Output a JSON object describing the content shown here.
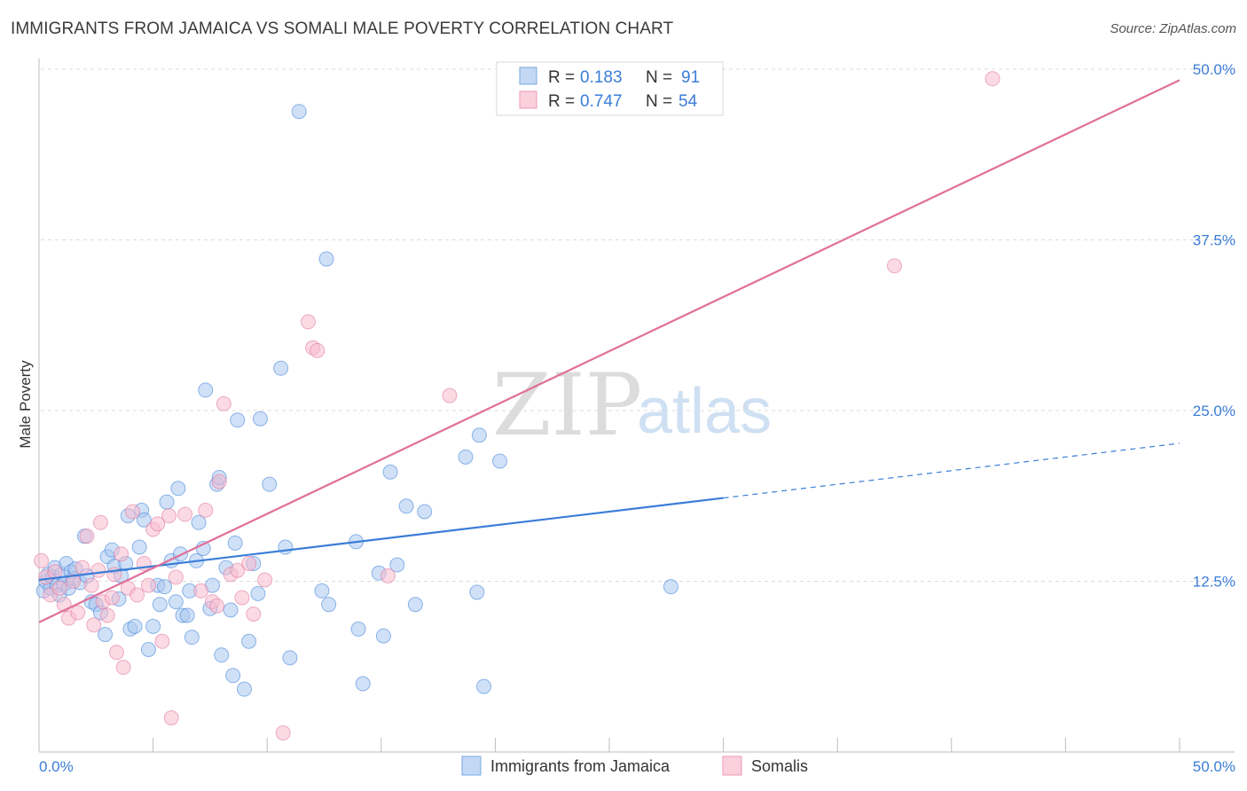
{
  "header": {
    "title": "IMMIGRANTS FROM JAMAICA VS SOMALI MALE POVERTY CORRELATION CHART",
    "source": "Source: ZipAtlas.com"
  },
  "stats_box": {
    "rows": [
      {
        "r_label": "R =",
        "r_value": "0.183",
        "n_label": "N =",
        "n_value": "91",
        "color": "#9dc3ef"
      },
      {
        "r_label": "R =",
        "r_value": "0.747",
        "n_label": "N =",
        "n_value": "54",
        "color": "#f5b5c9"
      }
    ]
  },
  "watermark": {
    "zip": "ZIP",
    "atlas": "atlas"
  },
  "chart_data": {
    "type": "scatter",
    "title": "IMMIGRANTS FROM JAMAICA VS SOMALI MALE POVERTY CORRELATION CHART",
    "xlabel": "",
    "ylabel": "Male Poverty",
    "xlim": [
      0,
      50
    ],
    "ylim": [
      0,
      50
    ],
    "x_tick_labels": [
      "0.0%",
      "50.0%"
    ],
    "y_ticks": [
      12.5,
      25.0,
      37.5,
      50.0
    ],
    "y_tick_labels": [
      "12.5%",
      "25.0%",
      "37.5%",
      "50.0%"
    ],
    "grid": true,
    "legend_position": "bottom-center",
    "series": [
      {
        "name": "Immigrants from Jamaica",
        "color": "#3b7dd8",
        "fill": "#a9c9f0",
        "trend": {
          "x": [
            0,
            30
          ],
          "y": [
            12.6,
            18.6
          ],
          "dashed_to": [
            50,
            22.6
          ]
        },
        "points": [
          [
            0.2,
            11.8
          ],
          [
            0.3,
            12.5
          ],
          [
            0.4,
            13.0
          ],
          [
            0.5,
            12.0
          ],
          [
            0.6,
            12.8
          ],
          [
            0.7,
            13.5
          ],
          [
            0.8,
            12.2
          ],
          [
            0.9,
            11.5
          ],
          [
            1.0,
            13.0
          ],
          [
            1.1,
            12.3
          ],
          [
            1.2,
            13.8
          ],
          [
            1.3,
            12.0
          ],
          [
            1.4,
            13.2
          ],
          [
            1.5,
            12.7
          ],
          [
            1.6,
            13.4
          ],
          [
            1.8,
            12.4
          ],
          [
            2.0,
            15.8
          ],
          [
            2.1,
            12.9
          ],
          [
            2.3,
            11.0
          ],
          [
            2.5,
            10.8
          ],
          [
            2.7,
            10.2
          ],
          [
            2.9,
            8.6
          ],
          [
            3.0,
            14.3
          ],
          [
            3.2,
            14.8
          ],
          [
            3.3,
            13.6
          ],
          [
            3.5,
            11.2
          ],
          [
            3.6,
            12.9
          ],
          [
            3.8,
            13.8
          ],
          [
            3.9,
            17.3
          ],
          [
            4.0,
            9.0
          ],
          [
            4.2,
            9.2
          ],
          [
            4.4,
            15.0
          ],
          [
            4.5,
            17.7
          ],
          [
            4.6,
            17.0
          ],
          [
            4.8,
            7.5
          ],
          [
            5.0,
            9.2
          ],
          [
            5.2,
            12.2
          ],
          [
            5.3,
            10.8
          ],
          [
            5.5,
            12.1
          ],
          [
            5.6,
            18.3
          ],
          [
            5.8,
            14.0
          ],
          [
            6.0,
            11.0
          ],
          [
            6.1,
            19.3
          ],
          [
            6.2,
            14.5
          ],
          [
            6.3,
            10.0
          ],
          [
            6.5,
            10.0
          ],
          [
            6.6,
            11.8
          ],
          [
            6.7,
            8.4
          ],
          [
            6.9,
            14.0
          ],
          [
            7.0,
            16.8
          ],
          [
            7.2,
            14.9
          ],
          [
            7.3,
            26.5
          ],
          [
            7.5,
            10.5
          ],
          [
            7.6,
            12.2
          ],
          [
            7.8,
            19.6
          ],
          [
            7.9,
            20.1
          ],
          [
            8.0,
            7.1
          ],
          [
            8.2,
            13.5
          ],
          [
            8.4,
            10.4
          ],
          [
            8.5,
            5.6
          ],
          [
            8.6,
            15.3
          ],
          [
            8.7,
            24.3
          ],
          [
            9.0,
            4.6
          ],
          [
            9.2,
            8.1
          ],
          [
            9.4,
            13.8
          ],
          [
            9.6,
            11.6
          ],
          [
            9.7,
            24.4
          ],
          [
            10.1,
            19.6
          ],
          [
            10.6,
            28.1
          ],
          [
            10.8,
            15.0
          ],
          [
            11.0,
            6.9
          ],
          [
            11.4,
            46.9
          ],
          [
            12.4,
            11.8
          ],
          [
            12.7,
            10.8
          ],
          [
            12.6,
            36.1
          ],
          [
            13.9,
            15.4
          ],
          [
            14.0,
            9.0
          ],
          [
            14.2,
            5.0
          ],
          [
            14.9,
            13.1
          ],
          [
            15.1,
            8.5
          ],
          [
            15.4,
            20.5
          ],
          [
            15.7,
            13.7
          ],
          [
            16.1,
            18.0
          ],
          [
            16.5,
            10.8
          ],
          [
            16.9,
            17.6
          ],
          [
            18.7,
            21.6
          ],
          [
            19.2,
            11.7
          ],
          [
            19.3,
            23.2
          ],
          [
            19.5,
            4.8
          ],
          [
            20.2,
            21.3
          ],
          [
            27.7,
            12.1
          ]
        ]
      },
      {
        "name": "Somalis",
        "color": "#e0719a",
        "fill": "#f7bccd",
        "trend": {
          "x": [
            0,
            50
          ],
          "y": [
            9.5,
            49.2
          ]
        },
        "points": [
          [
            0.1,
            14.0
          ],
          [
            0.3,
            12.8
          ],
          [
            0.5,
            11.5
          ],
          [
            0.7,
            13.2
          ],
          [
            0.9,
            12.0
          ],
          [
            1.1,
            10.8
          ],
          [
            1.3,
            9.8
          ],
          [
            1.5,
            12.5
          ],
          [
            1.7,
            10.2
          ],
          [
            1.9,
            13.5
          ],
          [
            2.1,
            15.8
          ],
          [
            2.3,
            12.2
          ],
          [
            2.4,
            9.3
          ],
          [
            2.6,
            13.3
          ],
          [
            2.7,
            16.8
          ],
          [
            2.8,
            11.0
          ],
          [
            3.0,
            10.0
          ],
          [
            3.2,
            11.3
          ],
          [
            3.3,
            13.0
          ],
          [
            3.4,
            7.3
          ],
          [
            3.6,
            14.5
          ],
          [
            3.7,
            6.2
          ],
          [
            3.9,
            12.0
          ],
          [
            4.1,
            17.6
          ],
          [
            4.3,
            11.5
          ],
          [
            4.6,
            13.8
          ],
          [
            4.8,
            12.2
          ],
          [
            5.0,
            16.3
          ],
          [
            5.2,
            16.7
          ],
          [
            5.4,
            8.1
          ],
          [
            5.7,
            17.3
          ],
          [
            5.8,
            2.5
          ],
          [
            6.0,
            12.8
          ],
          [
            6.4,
            17.4
          ],
          [
            7.1,
            11.8
          ],
          [
            7.3,
            17.7
          ],
          [
            7.6,
            11.0
          ],
          [
            7.8,
            10.7
          ],
          [
            7.9,
            19.8
          ],
          [
            8.1,
            25.5
          ],
          [
            8.4,
            13.0
          ],
          [
            8.7,
            13.3
          ],
          [
            8.9,
            11.3
          ],
          [
            9.2,
            13.8
          ],
          [
            9.4,
            10.1
          ],
          [
            9.9,
            12.6
          ],
          [
            10.7,
            1.4
          ],
          [
            11.8,
            31.5
          ],
          [
            12.0,
            29.6
          ],
          [
            12.2,
            29.4
          ],
          [
            18.0,
            26.1
          ],
          [
            15.3,
            12.9
          ],
          [
            37.5,
            35.6
          ],
          [
            41.8,
            49.3
          ]
        ]
      }
    ]
  },
  "legend": {
    "items": [
      {
        "label": "Immigrants from Jamaica"
      },
      {
        "label": "Somalis"
      }
    ]
  }
}
